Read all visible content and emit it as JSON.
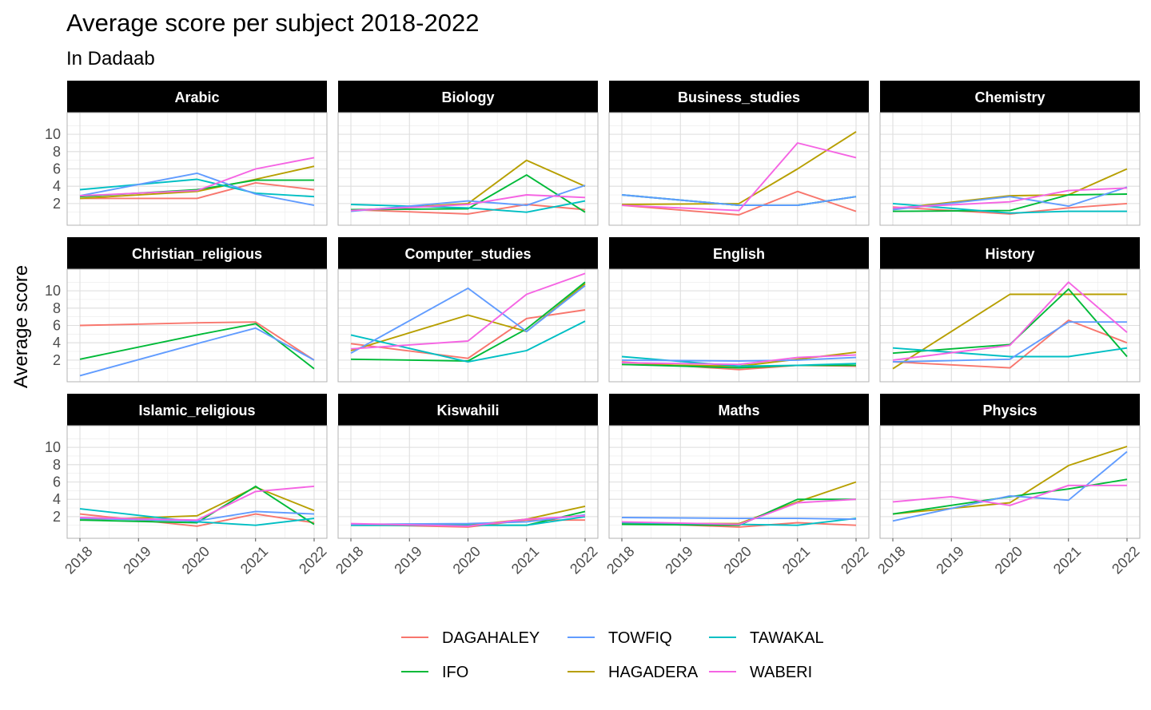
{
  "chart_data": {
    "type": "line",
    "title": "Average score per subject 2018-2022",
    "subtitle": "In Dadaab",
    "ylabel": "Average score",
    "xlabel": "",
    "x": [
      "2018",
      "2019",
      "2020",
      "2021",
      "2022"
    ],
    "yticks": [
      "2",
      "4",
      "6",
      "8",
      "10"
    ],
    "ylim": [
      -0.5,
      12.5
    ],
    "grid": true,
    "legend_position": "bottom",
    "series_names": [
      "DAGAHALEY",
      "IFO",
      "TOWFIQ",
      "HAGADERA",
      "TAWAKAL",
      "WABERI"
    ],
    "colors": {
      "DAGAHALEY": "#F8766D",
      "HAGADERA": "#B79F00",
      "IFO": "#00BA38",
      "TAWAKAL": "#00BFC4",
      "TOWFIQ": "#619CFF",
      "WABERI": "#F564E3"
    },
    "panels": [
      {
        "subject": "Arabic",
        "series": {
          "DAGAHALEY": [
            2.6,
            null,
            2.6,
            4.4,
            3.6
          ],
          "HAGADERA": [
            2.6,
            null,
            3.4,
            4.8,
            6.3
          ],
          "IFO": [
            2.8,
            null,
            3.6,
            4.7,
            4.7
          ],
          "TAWAKAL": [
            3.6,
            null,
            4.8,
            3.2,
            2.8
          ],
          "TOWFIQ": [
            2.9,
            null,
            5.5,
            3.1,
            1.8
          ],
          "WABERI": [
            2.9,
            null,
            3.5,
            6.0,
            7.3
          ]
        }
      },
      {
        "subject": "Biology",
        "series": {
          "DAGAHALEY": [
            1.3,
            null,
            0.8,
            1.9,
            1.3
          ],
          "HAGADERA": [
            1.2,
            null,
            2.0,
            7.0,
            4.0
          ],
          "IFO": [
            1.3,
            null,
            1.4,
            5.3,
            1.0
          ],
          "TAWAKAL": [
            1.9,
            null,
            1.5,
            1.0,
            2.3
          ],
          "TOWFIQ": [
            1.1,
            null,
            2.3,
            1.8,
            4.1
          ],
          "WABERI": [
            1.2,
            null,
            1.9,
            3.0,
            2.7
          ]
        }
      },
      {
        "subject": "Business_studies",
        "series": {
          "DAGAHALEY": [
            1.8,
            null,
            0.7,
            3.4,
            1.1
          ],
          "HAGADERA": [
            1.9,
            null,
            2.0,
            6.0,
            10.3
          ],
          "IFO": [
            3.0,
            null,
            1.8,
            1.8,
            2.8
          ],
          "TAWAKAL": [
            3.0,
            null,
            1.8,
            1.8,
            2.8
          ],
          "TOWFIQ": [
            3.0,
            null,
            1.8,
            1.8,
            2.8
          ],
          "WABERI": [
            1.8,
            null,
            1.2,
            9.0,
            7.3
          ]
        }
      },
      {
        "subject": "Chemistry",
        "series": {
          "DAGAHALEY": [
            1.6,
            null,
            0.8,
            1.5,
            2.0
          ],
          "HAGADERA": [
            1.4,
            null,
            2.9,
            3.0,
            6.0
          ],
          "IFO": [
            1.1,
            null,
            1.2,
            3.0,
            3.1
          ],
          "TAWAKAL": [
            2.0,
            null,
            0.9,
            1.1,
            1.1
          ],
          "TOWFIQ": [
            1.3,
            null,
            2.8,
            1.7,
            3.9
          ],
          "WABERI": [
            1.5,
            null,
            2.2,
            3.5,
            3.8
          ]
        }
      },
      {
        "subject": "Christian_religious",
        "series": {
          "DAGAHALEY": [
            6.0,
            null,
            6.3,
            6.4,
            2.0
          ],
          "IFO": [
            2.1,
            null,
            4.9,
            6.2,
            1.0
          ],
          "TOWFIQ": [
            0.2,
            null,
            3.9,
            5.7,
            2.0
          ]
        }
      },
      {
        "subject": "Computer_studies",
        "series": {
          "DAGAHALEY": [
            3.9,
            null,
            2.2,
            6.8,
            7.8
          ],
          "HAGADERA": [
            3.1,
            null,
            7.2,
            5.3,
            10.8
          ],
          "IFO": [
            2.1,
            null,
            1.9,
            5.6,
            11.0
          ],
          "TAWAKAL": [
            4.9,
            null,
            1.8,
            3.1,
            6.5
          ],
          "TOWFIQ": [
            2.8,
            null,
            10.3,
            5.3,
            10.6
          ],
          "WABERI": [
            3.3,
            null,
            4.2,
            9.6,
            12.0
          ]
        }
      },
      {
        "subject": "English",
        "series": {
          "DAGAHALEY": [
            1.8,
            null,
            0.9,
            1.4,
            1.3
          ],
          "HAGADERA": [
            1.5,
            null,
            1.3,
            2.1,
            2.9
          ],
          "IFO": [
            1.5,
            null,
            1.1,
            1.4,
            1.4
          ],
          "TAWAKAL": [
            2.4,
            null,
            1.3,
            1.4,
            1.6
          ],
          "TOWFIQ": [
            2.0,
            null,
            1.9,
            2.0,
            2.3
          ],
          "WABERI": [
            1.7,
            null,
            1.5,
            2.3,
            2.6
          ]
        }
      },
      {
        "subject": "History",
        "series": {
          "DAGAHALEY": [
            1.8,
            null,
            1.1,
            6.6,
            4.0
          ],
          "HAGADERA": [
            1.0,
            null,
            9.6,
            9.6,
            9.6
          ],
          "IFO": [
            2.8,
            null,
            3.8,
            10.2,
            2.4
          ],
          "TAWAKAL": [
            3.4,
            null,
            2.4,
            2.4,
            3.4
          ],
          "TOWFIQ": [
            1.8,
            null,
            2.1,
            6.4,
            6.4
          ],
          "WABERI": [
            2.0,
            null,
            3.7,
            11.0,
            5.2
          ]
        }
      },
      {
        "subject": "Islamic_religious",
        "series": {
          "DAGAHALEY": [
            2.3,
            null,
            0.9,
            2.3,
            1.3
          ],
          "HAGADERA": [
            1.6,
            null,
            2.1,
            5.4,
            2.7
          ],
          "IFO": [
            1.6,
            null,
            1.3,
            5.5,
            1.1
          ],
          "TAWAKAL": [
            2.9,
            null,
            1.4,
            1.0,
            1.8
          ],
          "TOWFIQ": [
            1.8,
            null,
            1.5,
            2.6,
            2.3
          ],
          "WABERI": [
            1.9,
            null,
            1.6,
            4.9,
            5.5
          ]
        }
      },
      {
        "subject": "Kiswahili",
        "series": {
          "DAGAHALEY": [
            1.1,
            null,
            0.8,
            1.6,
            1.6
          ],
          "HAGADERA": [
            1.0,
            null,
            1.0,
            1.7,
            3.2
          ],
          "IFO": [
            1.0,
            null,
            1.0,
            1.0,
            2.6
          ],
          "TAWAKAL": [
            1.0,
            null,
            1.0,
            1.0,
            2.0
          ],
          "TOWFIQ": [
            1.1,
            null,
            1.2,
            1.4,
            2.2
          ],
          "WABERI": [
            1.2,
            null,
            0.9,
            1.7,
            2.1
          ]
        }
      },
      {
        "subject": "Maths",
        "series": {
          "DAGAHALEY": [
            1.3,
            null,
            0.8,
            1.3,
            1.0
          ],
          "HAGADERA": [
            1.2,
            null,
            1.2,
            3.7,
            6.0
          ],
          "IFO": [
            1.1,
            null,
            1.0,
            4.0,
            4.0
          ],
          "TAWAKAL": [
            1.3,
            null,
            1.1,
            1.0,
            1.8
          ],
          "TOWFIQ": [
            1.9,
            null,
            1.8,
            1.8,
            1.7
          ],
          "WABERI": [
            1.4,
            null,
            1.1,
            3.6,
            4.0
          ]
        }
      },
      {
        "subject": "Physics",
        "series": {
          "HAGADERA": [
            2.3,
            null,
            3.6,
            7.9,
            10.1
          ],
          "IFO": [
            2.3,
            null,
            4.3,
            5.2,
            6.3
          ],
          "TOWFIQ": [
            1.5,
            null,
            4.4,
            3.9,
            9.5
          ],
          "WABERI": [
            3.7,
            4.3,
            3.3,
            5.6,
            5.6
          ]
        }
      }
    ]
  }
}
